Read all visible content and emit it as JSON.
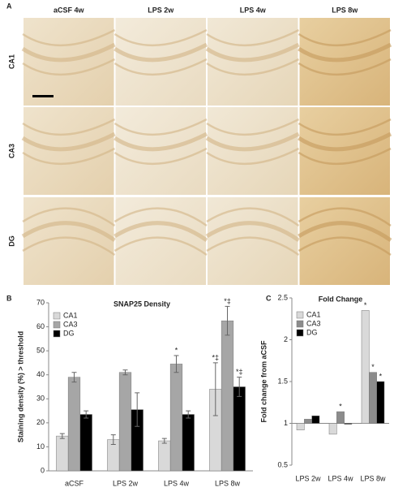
{
  "panel_labels": [
    "A",
    "B",
    "C"
  ],
  "panel_a": {
    "columns": [
      "aCSF 4w",
      "LPS 2w",
      "LPS 4w",
      "LPS 8w"
    ],
    "rows": [
      "CA1",
      "CA3",
      "DG"
    ]
  },
  "chart_data": [
    {
      "type": "bar",
      "title": "SNAP25 Density",
      "y_label": "Staining density (%) > threshold",
      "categories": [
        "aCSF",
        "LPS 2w",
        "LPS 4w",
        "LPS 8w"
      ],
      "series": [
        {
          "name": "CA1",
          "color": "#d9d9d9",
          "values": [
            14.5,
            13,
            12.5,
            34
          ],
          "errors": [
            1,
            2,
            1,
            11
          ]
        },
        {
          "name": "CA3",
          "color": "#a6a6a6",
          "values": [
            39,
            41,
            44.5,
            62.5
          ],
          "errors": [
            2,
            1,
            3.5,
            6
          ]
        },
        {
          "name": "DG",
          "color": "#000000",
          "values": [
            23.5,
            25.5,
            23.5,
            35
          ],
          "errors": [
            1.5,
            7,
            1.5,
            4
          ]
        }
      ],
      "ylim": [
        0,
        70
      ],
      "yticks": [
        0,
        10,
        20,
        30,
        40,
        50,
        60,
        70
      ],
      "annotations": [
        {
          "text": "*",
          "series": "CA3",
          "category": "LPS 4w"
        },
        {
          "text": "*‡",
          "series": "CA1",
          "category": "LPS 8w"
        },
        {
          "text": "*‡",
          "series": "CA3",
          "category": "LPS 8w"
        },
        {
          "text": "*‡",
          "series": "DG",
          "category": "LPS 8w"
        }
      ]
    },
    {
      "type": "bar",
      "title": "Fold Change",
      "y_label": "Fold change from aCSF",
      "categories": [
        "LPS 2w",
        "LPS 4w",
        "LPS 8w"
      ],
      "series": [
        {
          "name": "CA1",
          "color": "#d9d9d9",
          "values": [
            0.92,
            0.87,
            2.35
          ]
        },
        {
          "name": "CA3",
          "color": "#8c8c8c",
          "values": [
            1.05,
            1.14,
            1.61
          ]
        },
        {
          "name": "DG",
          "color": "#000000",
          "values": [
            1.09,
            0.99,
            1.5
          ]
        }
      ],
      "ylim": [
        0.5,
        2.5
      ],
      "yticks": [
        0.5,
        1,
        1.5,
        2,
        2.5
      ],
      "bar_base": 1,
      "annotations": [
        {
          "text": "*",
          "series": "CA3",
          "category": "LPS 4w"
        },
        {
          "text": "*",
          "series": "CA1",
          "category": "LPS 8w"
        },
        {
          "text": "*",
          "series": "CA3",
          "category": "LPS 8w"
        },
        {
          "text": "*",
          "series": "DG",
          "category": "LPS 8w"
        }
      ]
    }
  ]
}
